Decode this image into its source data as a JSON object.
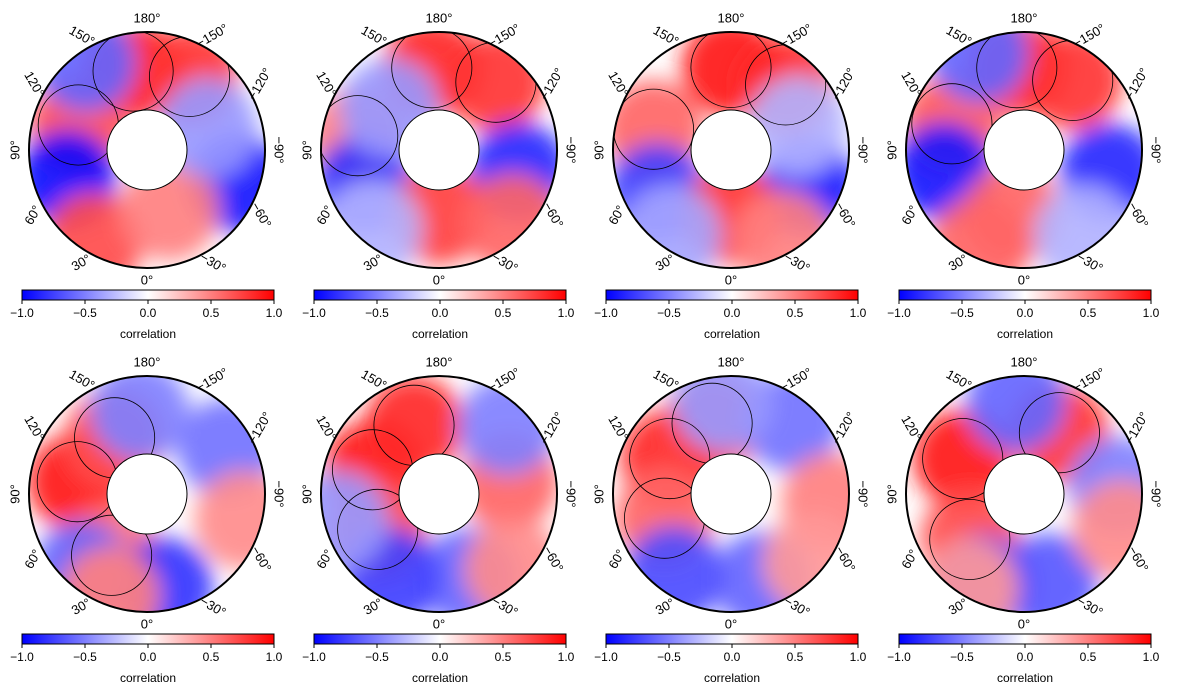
{
  "colormap": {
    "min_color": "#0000ff",
    "mid_color": "#ffffff",
    "max_color": "#ff0000"
  },
  "longitude_labels": [
    {
      "deg": 180,
      "text": "180°"
    },
    {
      "deg": 150,
      "text": "150°"
    },
    {
      "deg": 120,
      "text": "120°"
    },
    {
      "deg": 90,
      "text": "90°"
    },
    {
      "deg": 60,
      "text": "60°"
    },
    {
      "deg": 30,
      "text": "30°"
    },
    {
      "deg": 0,
      "text": "0°"
    },
    {
      "deg": -30,
      "text": "−30°"
    },
    {
      "deg": -60,
      "text": "−60°"
    },
    {
      "deg": -90,
      "text": "−90°"
    },
    {
      "deg": -120,
      "text": "−120°"
    },
    {
      "deg": -150,
      "text": "−150°"
    }
  ],
  "colorbar": {
    "label": "correlation",
    "ticks": [
      "−1.0",
      "−0.5",
      "0.0",
      "0.5",
      "1.0"
    ],
    "range": [
      -1.0,
      1.0
    ]
  },
  "maps": [
    {
      "id": "row1-col1",
      "blobs": [
        {
          "lon": 170,
          "r": 0.68,
          "v": 0.9
        },
        {
          "lon": -150,
          "r": 0.72,
          "v": 0.8
        },
        {
          "lon": 110,
          "r": 0.62,
          "v": 0.7
        },
        {
          "lon": -70,
          "r": 0.82,
          "v": -0.9
        },
        {
          "lon": 70,
          "r": 0.72,
          "v": -0.95
        },
        {
          "lon": 30,
          "r": 0.9,
          "v": 0.7
        },
        {
          "lon": -20,
          "r": 0.55,
          "v": 0.5
        },
        {
          "lon": -110,
          "r": 0.55,
          "v": -0.4
        },
        {
          "lon": 145,
          "r": 0.9,
          "v": -0.6
        }
      ]
    },
    {
      "id": "row1-col2",
      "blobs": [
        {
          "lon": 175,
          "r": 0.7,
          "v": 0.85
        },
        {
          "lon": -140,
          "r": 0.75,
          "v": 0.8
        },
        {
          "lon": 100,
          "r": 0.7,
          "v": 0.5
        },
        {
          "lon": 65,
          "r": 0.7,
          "v": -0.8
        },
        {
          "lon": -75,
          "r": 0.7,
          "v": -0.85
        },
        {
          "lon": 0,
          "r": 0.55,
          "v": 0.75
        },
        {
          "lon": -45,
          "r": 0.88,
          "v": 0.6
        },
        {
          "lon": 130,
          "r": 0.55,
          "v": -0.4
        },
        {
          "lon": 40,
          "r": 0.88,
          "v": -0.3
        }
      ]
    },
    {
      "id": "row1-col3",
      "blobs": [
        {
          "lon": 180,
          "r": 0.7,
          "v": 0.9
        },
        {
          "lon": -140,
          "r": 0.72,
          "v": 0.85
        },
        {
          "lon": 105,
          "r": 0.68,
          "v": 0.6
        },
        {
          "lon": 60,
          "r": 0.72,
          "v": -0.75
        },
        {
          "lon": -65,
          "r": 0.72,
          "v": -0.9
        },
        {
          "lon": 0,
          "r": 0.55,
          "v": 0.8
        },
        {
          "lon": -30,
          "r": 0.88,
          "v": 0.5
        },
        {
          "lon": 35,
          "r": 0.88,
          "v": -0.35
        },
        {
          "lon": -110,
          "r": 0.6,
          "v": -0.3
        }
      ]
    },
    {
      "id": "row1-col4",
      "blobs": [
        {
          "lon": 175,
          "r": 0.7,
          "v": 0.85
        },
        {
          "lon": -145,
          "r": 0.72,
          "v": 0.8
        },
        {
          "lon": 110,
          "r": 0.65,
          "v": 0.65
        },
        {
          "lon": 75,
          "r": 0.7,
          "v": -0.9
        },
        {
          "lon": -75,
          "r": 0.75,
          "v": -0.85
        },
        {
          "lon": 10,
          "r": 0.55,
          "v": 0.6
        },
        {
          "lon": 25,
          "r": 0.9,
          "v": 0.6
        },
        {
          "lon": -35,
          "r": 0.88,
          "v": -0.3
        },
        {
          "lon": 155,
          "r": 0.9,
          "v": -0.6
        }
      ]
    },
    {
      "id": "row2-col1",
      "blobs": [
        {
          "lon": 100,
          "r": 0.6,
          "v": 0.9
        },
        {
          "lon": 150,
          "r": 0.55,
          "v": 0.7
        },
        {
          "lon": 30,
          "r": 0.6,
          "v": 0.55
        },
        {
          "lon": -120,
          "r": 0.78,
          "v": -0.55
        },
        {
          "lon": 175,
          "r": 0.7,
          "v": -0.5
        },
        {
          "lon": -10,
          "r": 0.8,
          "v": -0.8
        },
        {
          "lon": 40,
          "r": 0.85,
          "v": -0.6
        },
        {
          "lon": -75,
          "r": 0.85,
          "v": 0.45
        },
        {
          "lon": 20,
          "r": 0.92,
          "v": 0.5
        }
      ]
    },
    {
      "id": "row2-col2",
      "blobs": [
        {
          "lon": 110,
          "r": 0.6,
          "v": 0.9
        },
        {
          "lon": 160,
          "r": 0.62,
          "v": 0.85
        },
        {
          "lon": 60,
          "r": 0.6,
          "v": 0.7
        },
        {
          "lon": -100,
          "r": 0.6,
          "v": 0.6
        },
        {
          "lon": -135,
          "r": 0.82,
          "v": -0.5
        },
        {
          "lon": -20,
          "r": 0.75,
          "v": -0.6
        },
        {
          "lon": 30,
          "r": 0.82,
          "v": -0.75
        },
        {
          "lon": -45,
          "r": 0.9,
          "v": 0.45
        },
        {
          "lon": 75,
          "r": 0.88,
          "v": -0.4
        }
      ]
    },
    {
      "id": "row2-col3",
      "blobs": [
        {
          "lon": 120,
          "r": 0.6,
          "v": 0.85
        },
        {
          "lon": 165,
          "r": 0.62,
          "v": 0.75
        },
        {
          "lon": 70,
          "r": 0.6,
          "v": 0.6
        },
        {
          "lon": -140,
          "r": 0.8,
          "v": -0.55
        },
        {
          "lon": 175,
          "r": 0.78,
          "v": -0.4
        },
        {
          "lon": -20,
          "r": 0.78,
          "v": -0.6
        },
        {
          "lon": 35,
          "r": 0.84,
          "v": -0.7
        },
        {
          "lon": -85,
          "r": 0.85,
          "v": 0.5
        },
        {
          "lon": -50,
          "r": 0.9,
          "v": 0.4
        }
      ]
    },
    {
      "id": "row2-col4",
      "blobs": [
        {
          "lon": 120,
          "r": 0.6,
          "v": 0.9
        },
        {
          "lon": -150,
          "r": 0.6,
          "v": 0.8
        },
        {
          "lon": 50,
          "r": 0.6,
          "v": 0.7
        },
        {
          "lon": -95,
          "r": 0.8,
          "v": -0.5
        },
        {
          "lon": 175,
          "r": 0.78,
          "v": -0.6
        },
        {
          "lon": -15,
          "r": 0.78,
          "v": -0.65
        },
        {
          "lon": 25,
          "r": 0.84,
          "v": -0.75
        },
        {
          "lon": -70,
          "r": 0.88,
          "v": 0.45
        },
        {
          "lon": 30,
          "r": 0.92,
          "v": 0.4
        }
      ]
    }
  ]
}
